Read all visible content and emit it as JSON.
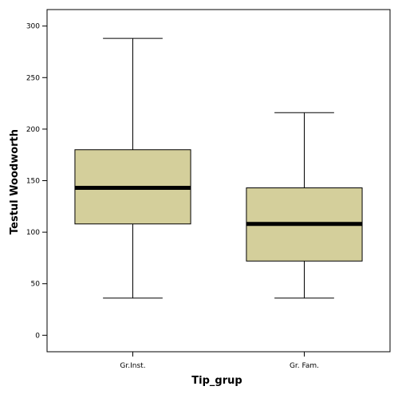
{
  "chart_data": {
    "type": "boxplot",
    "xlabel": "Tip_grup",
    "ylabel": "Testul Woodworth",
    "ylim": [
      -16,
      316
    ],
    "yticks": [
      0,
      50,
      100,
      150,
      200,
      250,
      300
    ],
    "grid": false,
    "legend": "none",
    "box_fill": "#d4cf9b",
    "line_color": "#000000",
    "categories": [
      "Gr.Inst.",
      "Gr. Fam."
    ],
    "boxes": [
      {
        "category": "Gr.Inst.",
        "min": 36,
        "q1": 108,
        "median": 143,
        "q3": 180,
        "max": 288
      },
      {
        "category": "Gr. Fam.",
        "min": 36,
        "q1": 72,
        "median": 108,
        "q3": 143,
        "max": 216
      }
    ]
  }
}
